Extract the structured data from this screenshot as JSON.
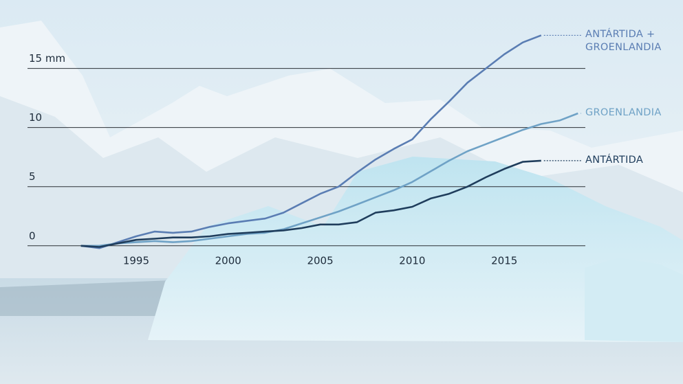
{
  "chart_data": {
    "type": "line",
    "x": [
      1992,
      1993,
      1994,
      1995,
      1996,
      1997,
      1998,
      1999,
      2000,
      2001,
      2002,
      2003,
      2004,
      2005,
      2006,
      2007,
      2008,
      2009,
      2010,
      2011,
      2012,
      2013,
      2014,
      2015,
      2016,
      2017,
      2018,
      2019
    ],
    "series": [
      {
        "name": "ANTÁRTIDA + GROENLANDIA",
        "color": "#5a7db3",
        "values": [
          0,
          -0.2,
          0.3,
          0.8,
          1.2,
          1.1,
          1.2,
          1.6,
          1.9,
          2.1,
          2.3,
          2.8,
          3.6,
          4.4,
          5.0,
          6.2,
          7.3,
          8.2,
          9.0,
          10.7,
          12.2,
          13.8,
          15.0,
          16.2,
          17.2,
          17.8,
          null,
          null
        ]
      },
      {
        "name": "GROENLANDIA",
        "color": "#6fa2c6",
        "values": [
          0,
          0,
          0.2,
          0.3,
          0.4,
          0.3,
          0.4,
          0.6,
          0.8,
          1.0,
          1.1,
          1.4,
          1.9,
          2.4,
          2.9,
          3.5,
          4.1,
          4.7,
          5.4,
          6.3,
          7.2,
          8.0,
          8.6,
          9.2,
          9.8,
          10.3,
          10.6,
          11.2
        ]
      },
      {
        "name": "ANTÁRTIDA",
        "color": "#1f3d5c",
        "values": [
          0,
          -0.1,
          0.2,
          0.5,
          0.6,
          0.7,
          0.7,
          0.8,
          1.0,
          1.1,
          1.2,
          1.3,
          1.5,
          1.8,
          1.8,
          2.0,
          2.8,
          3.0,
          3.3,
          4.0,
          4.4,
          5.0,
          5.8,
          6.5,
          7.1,
          7.2,
          null,
          null
        ]
      }
    ],
    "xlim": [
      1989.1,
      2019.4
    ],
    "xticks": [
      1995,
      2000,
      2005,
      2010,
      2015
    ],
    "ylim": [
      -1,
      18
    ],
    "yticks": [
      0,
      5,
      10,
      {
        "value": 15,
        "label": "15 mm"
      }
    ],
    "grid": true
  }
}
